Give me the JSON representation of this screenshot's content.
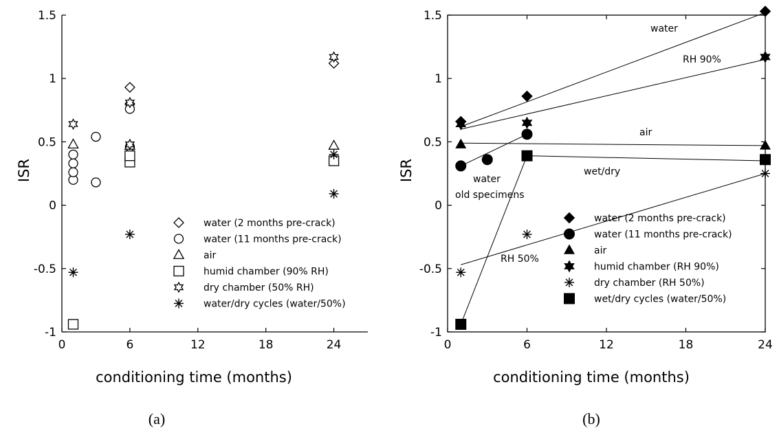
{
  "chart_data": [
    {
      "type": "scatter",
      "caption": "(a)",
      "xlabel": "conditioning time (months)",
      "ylabel": "ISR",
      "xlim": [
        0,
        27
      ],
      "ylim": [
        -1,
        1.5
      ],
      "xticks": [
        "0",
        "6",
        "12",
        "18",
        "24"
      ],
      "yticks": [
        "-1",
        "-0.5",
        "0",
        "0.5",
        "1",
        "1.5"
      ],
      "grid": false,
      "legend_position": "bottom-right",
      "series": [
        {
          "name": "water (2 months pre-crack)",
          "marker": "diamond-open",
          "points": [
            [
              6,
              0.93
            ],
            [
              6,
              0.8
            ],
            [
              24,
              1.12
            ]
          ]
        },
        {
          "name": "water (11 months pre-crack)",
          "marker": "circle-open",
          "points": [
            [
              1,
              0.2
            ],
            [
              1,
              0.26
            ],
            [
              1,
              0.33
            ],
            [
              1,
              0.4
            ],
            [
              3,
              0.54
            ],
            [
              3,
              0.18
            ],
            [
              6,
              0.46
            ],
            [
              6,
              0.76
            ]
          ]
        },
        {
          "name": "air",
          "marker": "triangle-open",
          "points": [
            [
              1,
              0.48
            ],
            [
              6,
              0.47
            ],
            [
              24,
              0.47
            ]
          ]
        },
        {
          "name": "humid chamber (90% RH)",
          "marker": "square-open",
          "points": [
            [
              1,
              -0.94
            ],
            [
              6,
              0.34
            ],
            [
              6,
              0.39
            ],
            [
              24,
              0.35
            ]
          ]
        },
        {
          "name": "dry chamber (50% RH)",
          "marker": "star6-open",
          "points": [
            [
              1,
              0.64
            ],
            [
              6,
              0.81
            ],
            [
              6,
              0.48
            ],
            [
              24,
              1.17
            ]
          ]
        },
        {
          "name": "water/dry cycles (water/50%)",
          "marker": "asterisk",
          "points": [
            [
              1,
              -0.53
            ],
            [
              6,
              -0.23
            ],
            [
              24,
              0.09
            ],
            [
              24,
              0.4
            ]
          ]
        }
      ]
    },
    {
      "type": "scatter",
      "caption": "(b)",
      "xlabel": "conditioning time (months)",
      "ylabel": "ISR",
      "xlim": [
        0,
        24
      ],
      "ylim": [
        -1,
        1.5
      ],
      "xticks": [
        "0",
        "6",
        "12",
        "18",
        "24"
      ],
      "yticks": [
        "-1",
        "-0.5",
        "0",
        "0.5",
        "1",
        "1.5"
      ],
      "grid": false,
      "legend_position": "bottom-right",
      "series": [
        {
          "name": "water (2 months pre-crack)",
          "marker": "diamond-filled",
          "points": [
            [
              1,
              0.66
            ],
            [
              6,
              0.86
            ],
            [
              24,
              1.53
            ]
          ]
        },
        {
          "name": "water (11 months pre-crack)",
          "marker": "circle-filled",
          "points": [
            [
              1,
              0.31
            ],
            [
              3,
              0.36
            ],
            [
              6,
              0.56
            ]
          ]
        },
        {
          "name": "air",
          "marker": "triangle-filled",
          "points": [
            [
              1,
              0.48
            ],
            [
              24,
              0.47
            ]
          ]
        },
        {
          "name": "humid chamber (RH 90%)",
          "marker": "star6-filled",
          "points": [
            [
              1,
              0.64
            ],
            [
              6,
              0.65
            ],
            [
              24,
              1.17
            ]
          ]
        },
        {
          "name": "dry chamber (RH 50%)",
          "marker": "asterisk",
          "points": [
            [
              1,
              -0.53
            ],
            [
              6,
              -0.23
            ],
            [
              24,
              0.25
            ]
          ]
        },
        {
          "name": "wet/dry cycles (water/50%)",
          "marker": "square-filled",
          "points": [
            [
              1,
              -0.94
            ],
            [
              6,
              0.39
            ],
            [
              24,
              0.36
            ]
          ]
        }
      ],
      "trend_lines": [
        {
          "label": "water",
          "from": [
            1,
            0.62
          ],
          "to": [
            24,
            1.52
          ]
        },
        {
          "label": "RH 90%",
          "from": [
            1,
            0.6
          ],
          "to": [
            24,
            1.15
          ]
        },
        {
          "label": "air",
          "from": [
            1,
            0.49
          ],
          "to": [
            24,
            0.47
          ]
        },
        {
          "label": "wet/dry",
          "from": [
            6,
            0.39
          ],
          "to": [
            24,
            0.35
          ]
        },
        {
          "label": "",
          "from": [
            1,
            -0.94
          ],
          "to": [
            6,
            0.39
          ]
        },
        {
          "label": "water old specimens",
          "from": [
            1,
            0.31
          ],
          "to": [
            6,
            0.56
          ]
        },
        {
          "label": "RH 50%",
          "from": [
            1,
            -0.47
          ],
          "to": [
            24,
            0.25
          ]
        }
      ],
      "annotations": [
        "water",
        "RH 90%",
        "air",
        "wet/dry",
        "water",
        "old specimens",
        "RH 50%"
      ]
    }
  ]
}
